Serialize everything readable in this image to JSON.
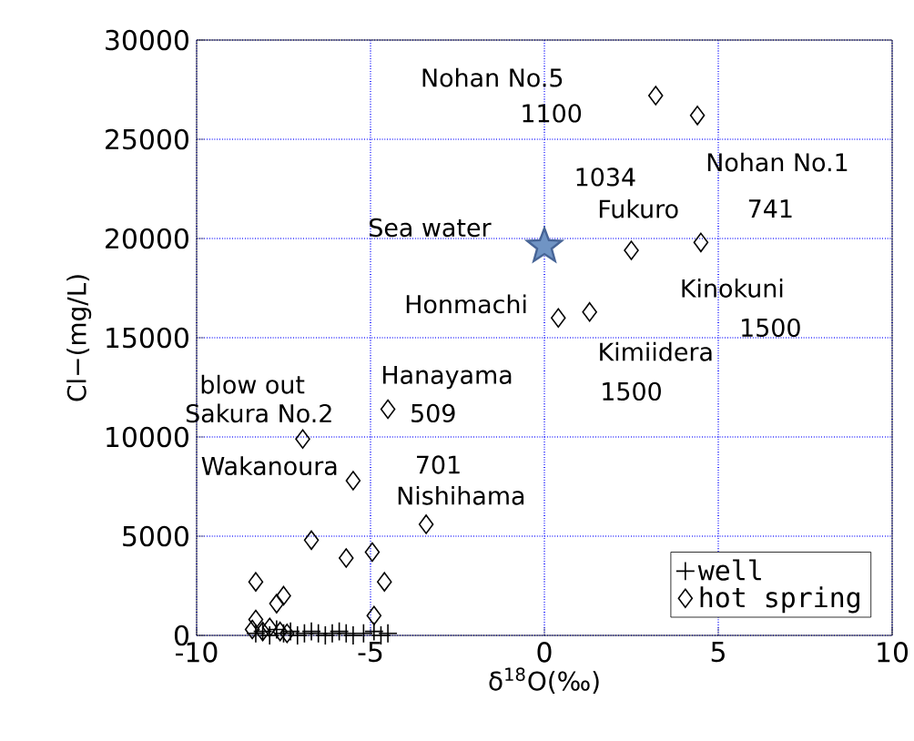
{
  "chart_data": {
    "type": "scatter",
    "xlabel": "δ$^{18}$O(‰)",
    "ylabel": "Cl−(mg/L)",
    "xlim": [
      -10,
      10
    ],
    "xticks": [
      -10,
      -5,
      0,
      5,
      10
    ],
    "ylim": [
      0,
      30000
    ],
    "yticks": [
      0,
      5000,
      10000,
      15000,
      20000,
      25000,
      30000
    ],
    "grid": true,
    "legend": "bottom right",
    "series": [
      {
        "name": "well",
        "color": "#000000",
        "marker": "cross",
        "x": [
          -8.3,
          -8.1,
          -7.9,
          -7.7,
          -7.5,
          -7.3,
          -7.1,
          -6.9,
          -6.7,
          -6.5,
          -6.3,
          -6.1,
          -5.9,
          -5.7,
          -5.5,
          -5.2,
          -4.9,
          -4.7,
          -4.5
        ],
        "values": [
          100,
          200,
          0,
          300,
          100,
          200,
          0,
          100,
          200,
          100,
          0,
          100,
          200,
          100,
          0,
          100,
          200,
          0,
          100
        ]
      },
      {
        "name": "hot spring",
        "color": "#000000",
        "marker": "diamond",
        "x": [
          3.2,
          4.4,
          2.5,
          4.5,
          0.4,
          1.3,
          -4.5,
          -6.95,
          -5.5,
          -3.4,
          -6.7,
          -5.7,
          -4.95,
          -4.6,
          -8.3,
          -7.5,
          -7.7,
          -4.9,
          -8.3,
          -8.4,
          -8.1,
          -7.9,
          -7.6,
          -7.4
        ],
        "values": [
          27200,
          26200,
          19400,
          19800,
          16000,
          16300,
          11400,
          9900,
          7800,
          5600,
          4800,
          3900,
          4200,
          2700,
          2700,
          2000,
          1600,
          1000,
          800,
          300,
          200,
          400,
          200,
          100
        ]
      },
      {
        "color": "#7094c4",
        "marker": "star",
        "x": [
          0.0
        ],
        "values": [
          19600
        ]
      }
    ],
    "annotations": [
      {
        "text": "Sea water",
        "x": 0.0,
        "y": 19600
      },
      "Nohan No.5",
      "1100",
      {
        "text": "1034",
        "x": 2.5,
        "y": 19400
      },
      {
        "text": "Fukuro",
        "x": 2.5,
        "y": 19400
      },
      {
        "text": "Nohan No.1",
        "x": 4.4,
        "y": 26200
      },
      "741",
      {
        "text": "Honmachi",
        "x": 0.4,
        "y": 16000
      },
      {
        "text": "Kinokuni",
        "x": 4.5,
        "y": 19800
      },
      "1500",
      {
        "text": "Kimiidera",
        "x": 1.3,
        "y": 16300
      },
      {
        "text": "1500",
        "x": 1.3,
        "y": 16300
      },
      {
        "text": "Hanayama",
        "x": -4.5,
        "y": 11400
      },
      {
        "text": "509",
        "x": -4.5,
        "y": 11400
      },
      {
        "text": "blow out",
        "x": -6.95,
        "y": 9900
      },
      {
        "text": "Sakura No.2",
        "x": -6.95,
        "y": 9900
      },
      {
        "text": "Wakanoura",
        "x": -5.5,
        "y": 7800
      },
      {
        "text": "701",
        "x": -3.4,
        "y": 5600
      },
      {
        "text": "Nishihama",
        "x": -3.4,
        "y": 5600
      }
    ]
  }
}
